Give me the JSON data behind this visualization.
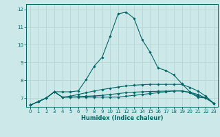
{
  "xlabel": "Humidex (Indice chaleur)",
  "ylabel": "",
  "bg_color": "#cce8e8",
  "grid_color": "#b8d8d8",
  "line_color": "#006666",
  "xlim": [
    -0.5,
    23.5
  ],
  "ylim": [
    6.5,
    12.3
  ],
  "xticks": [
    0,
    1,
    2,
    3,
    4,
    5,
    6,
    7,
    8,
    9,
    10,
    11,
    12,
    13,
    14,
    15,
    16,
    17,
    18,
    19,
    20,
    21,
    22,
    23
  ],
  "yticks": [
    7,
    8,
    9,
    10,
    11,
    12
  ],
  "series": [
    [
      6.6,
      6.8,
      7.0,
      7.35,
      7.35,
      7.35,
      7.4,
      8.05,
      8.8,
      9.3,
      10.5,
      11.75,
      11.85,
      11.5,
      10.3,
      9.6,
      8.7,
      8.55,
      8.3,
      7.8,
      7.35,
      7.1,
      7.0,
      6.7
    ],
    [
      6.6,
      6.8,
      7.0,
      7.35,
      7.05,
      7.05,
      7.05,
      7.05,
      7.05,
      7.05,
      7.05,
      7.05,
      7.1,
      7.15,
      7.2,
      7.25,
      7.3,
      7.35,
      7.4,
      7.4,
      7.3,
      7.05,
      7.0,
      6.7
    ],
    [
      6.6,
      6.8,
      7.0,
      7.35,
      7.05,
      7.1,
      7.2,
      7.3,
      7.4,
      7.48,
      7.55,
      7.62,
      7.68,
      7.72,
      7.75,
      7.77,
      7.77,
      7.77,
      7.77,
      7.77,
      7.6,
      7.4,
      7.1,
      6.7
    ],
    [
      6.6,
      6.8,
      7.0,
      7.35,
      7.05,
      7.05,
      7.08,
      7.1,
      7.12,
      7.15,
      7.2,
      7.25,
      7.3,
      7.33,
      7.35,
      7.37,
      7.38,
      7.39,
      7.4,
      7.4,
      7.33,
      7.2,
      7.0,
      6.7
    ]
  ]
}
